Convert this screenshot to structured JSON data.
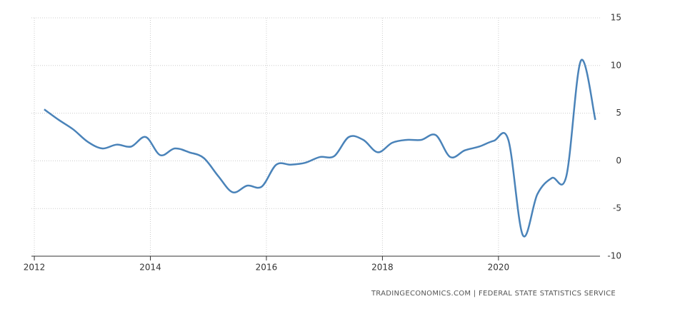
{
  "chart_data": {
    "type": "line",
    "x": [
      2012.17,
      2012.42,
      2012.67,
      2012.92,
      2013.17,
      2013.42,
      2013.67,
      2013.92,
      2014.17,
      2014.42,
      2014.67,
      2014.92,
      2015.17,
      2015.42,
      2015.67,
      2015.92,
      2016.17,
      2016.42,
      2016.67,
      2016.92,
      2017.17,
      2017.42,
      2017.67,
      2017.92,
      2018.17,
      2018.42,
      2018.67,
      2018.92,
      2019.17,
      2019.42,
      2019.67,
      2019.92,
      2020.17,
      2020.42,
      2020.67,
      2020.92,
      2021.17,
      2021.42,
      2021.67
    ],
    "series": [
      {
        "color": "#4a83b9",
        "values": [
          5.4,
          4.3,
          3.3,
          2.0,
          1.3,
          1.7,
          1.5,
          2.5,
          0.6,
          1.3,
          0.9,
          0.3,
          -1.6,
          -3.3,
          -2.6,
          -2.7,
          -0.4,
          -0.4,
          -0.2,
          0.4,
          0.5,
          2.5,
          2.2,
          0.9,
          1.9,
          2.2,
          2.2,
          2.7,
          0.4,
          1.1,
          1.5,
          2.1,
          2.2,
          -7.8,
          -3.5,
          -1.8,
          -1.6,
          10.5,
          4.3
        ]
      }
    ],
    "xlim": [
      2011.95,
      2021.75
    ],
    "xticks": [
      2012,
      2014,
      2016,
      2018,
      2020
    ],
    "ylim": [
      -10,
      15
    ],
    "yticks": [
      -10,
      -5,
      0,
      5,
      10,
      15
    ],
    "grid": true,
    "source": "TRADINGECONOMICS.COM  |  FEDERAL STATE STATISTICS SERVICE"
  }
}
